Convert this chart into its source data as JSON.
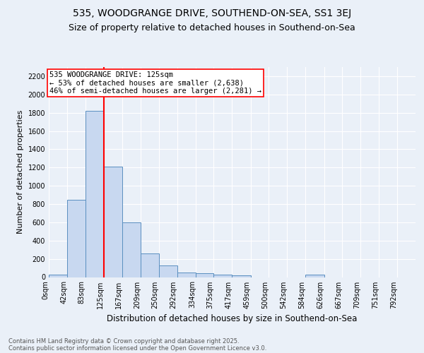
{
  "title1": "535, WOODGRANGE DRIVE, SOUTHEND-ON-SEA, SS1 3EJ",
  "title2": "Size of property relative to detached houses in Southend-on-Sea",
  "xlabel": "Distribution of detached houses by size in Southend-on-Sea",
  "ylabel": "Number of detached properties",
  "footer1": "Contains HM Land Registry data © Crown copyright and database right 2025.",
  "footer2": "Contains public sector information licensed under the Open Government Licence v3.0.",
  "bar_edges": [
    0,
    42,
    83,
    125,
    167,
    209,
    250,
    292,
    334,
    375,
    417,
    459,
    500,
    542,
    584,
    626,
    667,
    709,
    751,
    792,
    834
  ],
  "bar_heights": [
    25,
    845,
    1820,
    1210,
    600,
    260,
    130,
    50,
    40,
    30,
    20,
    0,
    0,
    0,
    25,
    0,
    0,
    0,
    0,
    0
  ],
  "bar_color": "#c8d8f0",
  "bar_edge_color": "#5a8fc0",
  "vline_x": 125,
  "vline_color": "red",
  "annotation_text": "535 WOODGRANGE DRIVE: 125sqm\n← 53% of detached houses are smaller (2,638)\n46% of semi-detached houses are larger (2,281) →",
  "ylim": [
    0,
    2300
  ],
  "yticks": [
    0,
    200,
    400,
    600,
    800,
    1000,
    1200,
    1400,
    1600,
    1800,
    2000,
    2200
  ],
  "bg_color": "#eaf0f8",
  "grid_color": "#ffffff",
  "title1_fontsize": 10,
  "title2_fontsize": 9,
  "ylabel_fontsize": 8,
  "xlabel_fontsize": 8.5,
  "tick_fontsize": 7,
  "footer_fontsize": 6,
  "ann_fontsize": 7.5
}
